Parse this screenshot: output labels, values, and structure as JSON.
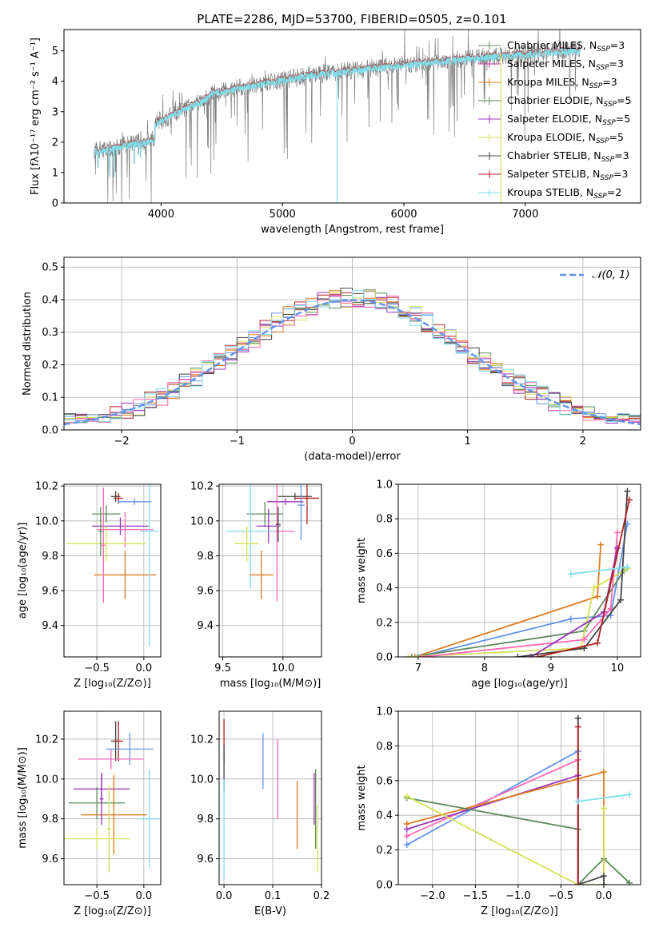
{
  "figure_title": "PLATE=2286, MJD=53700, FIBERID=0505, z=0.101",
  "chart_data": [
    {
      "id": "spectrum",
      "type": "line",
      "xlabel": "wavelength [Angstrom, rest frame]",
      "ylabel": "Flux [fλ10⁻¹⁷ erg cm⁻² s⁻¹ A⁻¹]",
      "xlim": [
        3200,
        7950
      ],
      "ylim": [
        0,
        5.7
      ],
      "xticks": [
        "4000",
        "5000",
        "6000",
        "7000"
      ],
      "yticks": [
        "0",
        "1",
        "2",
        "3",
        "4",
        "5"
      ],
      "grid": false,
      "legend_placement": "top-right",
      "legend": [
        {
          "label": "Chabrier MILES, N",
          "sub": "SSP",
          "tail": "=3",
          "color": "#5a8a5a"
        },
        {
          "label": "Salpeter MILES, N",
          "sub": "SSP",
          "tail": "=3",
          "color": "#cc3399"
        },
        {
          "label": "Kroupa MILES, N",
          "sub": "SSP",
          "tail": "=3",
          "color": "#e07b20"
        },
        {
          "label": "Chabrier ELODIE, N",
          "sub": "SSP",
          "tail": "=5",
          "color": "#5a8a5a"
        },
        {
          "label": "Salpeter ELODIE, N",
          "sub": "SSP",
          "tail": "=5",
          "color": "#9933bb"
        },
        {
          "label": "Kroupa ELODIE, N",
          "sub": "SSP",
          "tail": "=5",
          "color": "#d4e157"
        },
        {
          "label": "Chabrier STELIB, N",
          "sub": "SSP",
          "tail": "=3",
          "color": "#444444"
        },
        {
          "label": "Salpeter STELIB, N",
          "sub": "SSP",
          "tail": "=3",
          "color": "#b22222"
        },
        {
          "label": "Kroupa STELIB, N",
          "sub": "SSP",
          "tail": "=2",
          "color": "#80deea"
        }
      ],
      "data_color": "#808080",
      "model_color": "#80deea"
    },
    {
      "id": "residuals",
      "type": "line",
      "xlabel": "(data-model)/error",
      "ylabel": "Normed distribution",
      "xlim": [
        -2.5,
        2.5
      ],
      "ylim": [
        0,
        0.53
      ],
      "xticks": [
        "−2",
        "−1",
        "0",
        "1",
        "2"
      ],
      "yticks": [
        "0.0",
        "0.1",
        "0.2",
        "0.3",
        "0.4",
        "0.5"
      ],
      "grid": true,
      "legend": [
        {
          "label": "𝒩(0, 1)",
          "color": "#6495ed"
        }
      ],
      "legend_placement": "top-right",
      "series_colors": [
        "#6495ed",
        "#e07b20",
        "#5a8a5a",
        "#b22222",
        "#9933bb",
        "#d4e157",
        "#444444",
        "#ff69b4",
        "#80deea"
      ]
    },
    {
      "id": "age-vs-Z",
      "type": "scatter",
      "xlabel": "Z [log₁₀(Z/Z⊙)]",
      "ylabel": "age  [log₁₀(age/yr)]",
      "xlim": [
        -0.85,
        0.18
      ],
      "ylim": [
        9.22,
        10.21
      ],
      "xticks": [
        "−0.5",
        "0.0"
      ],
      "yticks": [
        "9.4",
        "9.6",
        "9.8",
        "10.0",
        "10.2"
      ],
      "grid": true,
      "points": [
        {
          "x": -0.3,
          "y": 10.14,
          "xerr": 0.05,
          "yerr": 0.03,
          "color": "#444444"
        },
        {
          "x": -0.27,
          "y": 10.13,
          "xerr": 0.05,
          "yerr": 0.03,
          "color": "#b22222"
        },
        {
          "x": -0.1,
          "y": 10.11,
          "xerr": 0.18,
          "yerr": 0.02,
          "color": "#6495ed"
        },
        {
          "x": -0.4,
          "y": 10.04,
          "xerr": 0.15,
          "yerr": 0.05,
          "color": "#5a8a5a"
        },
        {
          "x": -0.25,
          "y": 9.97,
          "xerr": 0.3,
          "yerr": 0.05,
          "color": "#9933bb"
        },
        {
          "x": -0.2,
          "y": 9.95,
          "xerr": 0.3,
          "yerr": 0.1,
          "color": "#ff69b4"
        },
        {
          "x": -0.4,
          "y": 9.87,
          "xerr": 0.42,
          "yerr": 0.1,
          "color": "#d4e157"
        },
        {
          "x": -0.2,
          "y": 9.69,
          "xerr": 0.33,
          "yerr": 0.14,
          "color": "#e07b20"
        },
        {
          "x": 0.06,
          "y": 9.94,
          "xerr": 0.1,
          "yerr": 0.66,
          "color": "#80deea"
        },
        {
          "x": -0.46,
          "y": 9.94,
          "xerr": 0.02,
          "yerr": 0.14,
          "color": "#5a8a5a"
        },
        {
          "x": -0.43,
          "y": 9.86,
          "xerr": 0.02,
          "yerr": 0.33,
          "color": "#ff69b4"
        }
      ]
    },
    {
      "id": "age-vs-mass",
      "type": "scatter",
      "xlabel": "mass [log₁₀(M/M⊙)]",
      "ylabel": "",
      "xlim": [
        9.47,
        10.32
      ],
      "ylim": [
        9.22,
        10.21
      ],
      "xticks": [
        "9.5",
        "10.0"
      ],
      "yticks": [
        "9.4",
        "9.6",
        "9.8",
        "10.0",
        "10.2"
      ],
      "grid": true,
      "points": [
        {
          "x": 10.1,
          "y": 10.14,
          "xerr": 0.14,
          "yerr": 0.02,
          "color": "#444444"
        },
        {
          "x": 10.2,
          "y": 10.13,
          "xerr": 0.1,
          "yerr": 0.15,
          "color": "#b22222"
        },
        {
          "x": 10.02,
          "y": 10.11,
          "xerr": 0.15,
          "yerr": 0.02,
          "color": "#9933bb"
        },
        {
          "x": 10.15,
          "y": 10.09,
          "xerr": 0.03,
          "yerr": 0.2,
          "color": "#6495ed"
        },
        {
          "x": 9.85,
          "y": 10.04,
          "xerr": 0.15,
          "yerr": 0.07,
          "color": "#5a8a5a"
        },
        {
          "x": 9.88,
          "y": 9.97,
          "xerr": 0.1,
          "yerr": 0.1,
          "color": "#9933bb"
        },
        {
          "x": 9.95,
          "y": 9.94,
          "xerr": 0.15,
          "yerr": 0.4,
          "color": "#ff69b4"
        },
        {
          "x": 9.73,
          "y": 9.94,
          "xerr": 0.2,
          "yerr": 0.33,
          "color": "#80deea"
        },
        {
          "x": 9.7,
          "y": 9.87,
          "xerr": 0.1,
          "yerr": 0.1,
          "color": "#d4e157"
        },
        {
          "x": 9.82,
          "y": 9.69,
          "xerr": 0.1,
          "yerr": 0.14,
          "color": "#e07b20"
        },
        {
          "x": 9.96,
          "y": 9.98,
          "xerr": 0.02,
          "yerr": 0.1,
          "color": "#444444"
        }
      ]
    },
    {
      "id": "weight-vs-age",
      "type": "line",
      "xlabel": "age  [log₁₀(age/yr)]",
      "ylabel": "mass weight",
      "xlim": [
        6.7,
        10.35
      ],
      "ylim": [
        0,
        1.0
      ],
      "xticks": [
        "7",
        "8",
        "9",
        "10"
      ],
      "yticks": [
        "0.0",
        "0.2",
        "0.4",
        "0.6",
        "0.8",
        "1.0"
      ],
      "grid": true,
      "series": [
        {
          "color": "#e07b20",
          "points": [
            [
              6.95,
              0
            ],
            [
              9.7,
              0.35
            ],
            [
              9.75,
              0.65
            ]
          ]
        },
        {
          "color": "#6495ed",
          "points": [
            [
              7.0,
              0
            ],
            [
              9.3,
              0.22
            ],
            [
              9.9,
              0.24
            ],
            [
              10.15,
              0.77
            ]
          ]
        },
        {
          "color": "#5a8a5a",
          "points": [
            [
              6.9,
              0
            ],
            [
              9.5,
              0.15
            ],
            [
              10.1,
              0.5
            ]
          ]
        },
        {
          "color": "#d4e157",
          "points": [
            [
              6.85,
              0
            ],
            [
              9.45,
              0.05
            ],
            [
              9.65,
              0.4
            ],
            [
              10.15,
              0.51
            ]
          ]
        },
        {
          "color": "#ff69b4",
          "points": [
            [
              7.05,
              0
            ],
            [
              9.5,
              0.1
            ],
            [
              9.9,
              0.28
            ],
            [
              10.0,
              0.72
            ]
          ]
        },
        {
          "color": "#9933bb",
          "points": [
            [
              8.7,
              0
            ],
            [
              9.8,
              0.26
            ],
            [
              10.0,
              0.63
            ]
          ]
        },
        {
          "color": "#444444",
          "points": [
            [
              8.5,
              0
            ],
            [
              9.5,
              0.05
            ],
            [
              10.05,
              0.33
            ],
            [
              10.15,
              0.96
            ]
          ]
        },
        {
          "color": "#b22222",
          "points": [
            [
              8.8,
              0
            ],
            [
              9.7,
              0.08
            ],
            [
              10.18,
              0.91
            ]
          ]
        },
        {
          "color": "#80deea",
          "points": [
            [
              9.3,
              0.48
            ],
            [
              10.15,
              0.52
            ]
          ]
        }
      ]
    },
    {
      "id": "mass-vs-Z",
      "type": "scatter",
      "xlabel": "Z [log₁₀(Z/Z⊙)]",
      "ylabel": "mass [log₁₀(M/M⊙)]",
      "xlim": [
        -0.85,
        0.18
      ],
      "ylim": [
        9.47,
        10.34
      ],
      "xticks": [
        "−0.5",
        "0.0"
      ],
      "yticks": [
        "9.6",
        "9.8",
        "10.0",
        "10.2"
      ],
      "grid": true,
      "points": [
        {
          "x": -0.3,
          "y": 10.19,
          "xerr": 0.05,
          "yerr": 0.1,
          "color": "#444444"
        },
        {
          "x": -0.27,
          "y": 10.19,
          "xerr": 0.05,
          "yerr": 0.1,
          "color": "#b22222"
        },
        {
          "x": -0.15,
          "y": 10.15,
          "xerr": 0.25,
          "yerr": 0.08,
          "color": "#6495ed"
        },
        {
          "x": -0.35,
          "y": 10.1,
          "xerr": 0.35,
          "yerr": 0.05,
          "color": "#ff69b4"
        },
        {
          "x": -0.45,
          "y": 9.95,
          "xerr": 0.3,
          "yerr": 0.08,
          "color": "#9933bb"
        },
        {
          "x": -0.5,
          "y": 9.88,
          "xerr": 0.3,
          "yerr": 0.08,
          "color": "#5a8a5a"
        },
        {
          "x": -0.32,
          "y": 9.82,
          "xerr": 0.35,
          "yerr": 0.2,
          "color": "#e07b20"
        },
        {
          "x": 0.06,
          "y": 9.8,
          "xerr": 0.1,
          "yerr": 0.25,
          "color": "#80deea"
        },
        {
          "x": -0.5,
          "y": 9.7,
          "xerr": 0.35,
          "yerr": 0.05,
          "color": "#d4e157"
        },
        {
          "x": -0.37,
          "y": 9.75,
          "xerr": 0.02,
          "yerr": 0.22,
          "color": "#d4e157"
        },
        {
          "x": -0.45,
          "y": 9.9,
          "xerr": 0.02,
          "yerr": 0.13,
          "color": "#9933bb"
        }
      ]
    },
    {
      "id": "mass-vs-ebv",
      "type": "scatter",
      "xlabel": "E(B-V)",
      "ylabel": "",
      "xlim": [
        -0.01,
        0.2
      ],
      "ylim": [
        9.47,
        10.34
      ],
      "xticks": [
        "0.0",
        "0.1",
        "0.2"
      ],
      "yticks": [
        "9.6",
        "9.8",
        "10.0",
        "10.2"
      ],
      "grid": true,
      "points": [
        {
          "x": 0.0,
          "y": 10.19,
          "xerr": 0,
          "yerr": 0.11,
          "color": "#b22222"
        },
        {
          "x": 0.0,
          "y": 10.05,
          "xerr": 0,
          "yerr": 0.12,
          "color": "#444444"
        },
        {
          "x": 0.0,
          "y": 9.75,
          "xerr": 0,
          "yerr": 0.25,
          "color": "#80deea"
        },
        {
          "x": 0.08,
          "y": 10.09,
          "xerr": 0,
          "yerr": 0.14,
          "color": "#6495ed"
        },
        {
          "x": 0.11,
          "y": 10.0,
          "xerr": 0,
          "yerr": 0.2,
          "color": "#ff69b4"
        },
        {
          "x": 0.15,
          "y": 9.82,
          "xerr": 0,
          "yerr": 0.17,
          "color": "#e07b20"
        },
        {
          "x": 0.185,
          "y": 9.9,
          "xerr": 0,
          "yerr": 0.13,
          "color": "#9933bb"
        },
        {
          "x": 0.188,
          "y": 9.85,
          "xerr": 0,
          "yerr": 0.2,
          "color": "#5a8a5a"
        },
        {
          "x": 0.192,
          "y": 9.7,
          "xerr": 0,
          "yerr": 0.17,
          "color": "#d4e157"
        }
      ]
    },
    {
      "id": "weight-vs-Z",
      "type": "line",
      "xlabel": "Z [log₁₀(Z/Z⊙)]",
      "ylabel": "mass weight",
      "xlim": [
        -2.4,
        0.43
      ],
      "ylim": [
        0,
        1.0
      ],
      "xticks": [
        "−2.0",
        "−1.5",
        "−1.0",
        "−0.5",
        "0.0"
      ],
      "yticks": [
        "0.0",
        "0.2",
        "0.4",
        "0.6",
        "0.8",
        "1.0"
      ],
      "grid": true,
      "series": [
        {
          "color": "#6495ed",
          "points": [
            [
              -2.3,
              0.23
            ],
            [
              -0.3,
              0.77
            ],
            [
              -0.3,
              0.0
            ]
          ]
        },
        {
          "color": "#ff69b4",
          "points": [
            [
              -2.3,
              0.28
            ],
            [
              -0.3,
              0.72
            ],
            [
              -0.3,
              0.0
            ]
          ]
        },
        {
          "color": "#9933bb",
          "points": [
            [
              -2.3,
              0.32
            ],
            [
              -0.3,
              0.63
            ],
            [
              -0.3,
              0.0
            ]
          ]
        },
        {
          "color": "#e07b20",
          "points": [
            [
              -2.3,
              0.35
            ],
            [
              -0.3,
              0.61
            ],
            [
              0.0,
              0.65
            ],
            [
              0.0,
              0.0
            ]
          ]
        },
        {
          "color": "#5a8a5a",
          "points": [
            [
              -2.3,
              0.5
            ],
            [
              -0.3,
              0.32
            ],
            [
              -0.3,
              0.0
            ],
            [
              0.0,
              0.15
            ],
            [
              0.3,
              0.01
            ]
          ]
        },
        {
          "color": "#d4e157",
          "points": [
            [
              -2.3,
              0.51
            ],
            [
              -0.3,
              0.0
            ],
            [
              0.0,
              0.0
            ],
            [
              0.0,
              0.44
            ]
          ]
        },
        {
          "color": "#444444",
          "points": [
            [
              -0.3,
              0.96
            ],
            [
              -0.3,
              0.0
            ],
            [
              0.0,
              0.05
            ],
            [
              0.0,
              0.0
            ]
          ]
        },
        {
          "color": "#b22222",
          "points": [
            [
              -0.3,
              0.91
            ],
            [
              -0.3,
              0.0
            ]
          ]
        },
        {
          "color": "#80deea",
          "points": [
            [
              -0.3,
              0.48
            ],
            [
              0.3,
              0.52
            ]
          ]
        }
      ]
    }
  ]
}
